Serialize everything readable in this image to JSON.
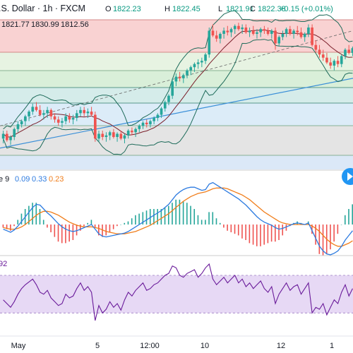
{
  "header": {
    "symbol_title": ".S. Dollar · 1h · FXCM",
    "ohlc": [
      {
        "key": "O",
        "value": "1822.23"
      },
      {
        "key": "H",
        "value": "1822.45"
      },
      {
        "key": "L",
        "value": "1821.91"
      },
      {
        "key": "C",
        "value": "1822.38"
      }
    ],
    "change": "+0.15 (+0.01%)",
    "indicator_values": [
      "1821.77",
      "1830.99",
      "1812.56"
    ]
  },
  "macd_legend": {
    "name": "e 9",
    "values": [
      "0.09",
      "0.33",
      "0.23"
    ]
  },
  "rsi_legend": {
    "value": "92"
  },
  "x_axis": {
    "labels": [
      "May",
      "5",
      "12:00",
      "10",
      "12",
      "1"
    ]
  },
  "colors": {
    "up_candle": "#26a69a",
    "down_candle": "#ef5350",
    "bollinger": "#1e6b5a",
    "ma_line": "#7b1f2a",
    "trend_line": "#3a8fd8",
    "macd_line": "#2d7be0",
    "signal_line": "#f07d1a",
    "rsi_line": "#6a1b9a",
    "rsi_band": "#e7d9f5",
    "play_button": "#2196f3",
    "positive_text": "#089981",
    "axis_text": "#131722"
  },
  "chart_data": {
    "type": "candlestick",
    "price_candles": [
      [
        1792,
        1797,
        1789,
        1795
      ],
      [
        1795,
        1797,
        1790,
        1791
      ],
      [
        1791,
        1794,
        1788,
        1793
      ],
      [
        1793,
        1799,
        1791,
        1798
      ],
      [
        1798,
        1803,
        1796,
        1801
      ],
      [
        1801,
        1804,
        1799,
        1803
      ],
      [
        1803,
        1807,
        1800,
        1806
      ],
      [
        1806,
        1810,
        1803,
        1809
      ],
      [
        1809,
        1814,
        1807,
        1812
      ],
      [
        1812,
        1815,
        1809,
        1810
      ],
      [
        1810,
        1813,
        1806,
        1807
      ],
      [
        1807,
        1810,
        1804,
        1808
      ],
      [
        1808,
        1812,
        1805,
        1810
      ],
      [
        1810,
        1811,
        1804,
        1806
      ],
      [
        1806,
        1808,
        1802,
        1804
      ],
      [
        1804,
        1806,
        1800,
        1802
      ],
      [
        1802,
        1805,
        1799,
        1803
      ],
      [
        1803,
        1808,
        1801,
        1806
      ],
      [
        1806,
        1808,
        1802,
        1804
      ],
      [
        1804,
        1807,
        1801,
        1805
      ],
      [
        1805,
        1810,
        1803,
        1808
      ],
      [
        1808,
        1812,
        1806,
        1810
      ],
      [
        1810,
        1812,
        1806,
        1808
      ],
      [
        1808,
        1811,
        1805,
        1809
      ],
      [
        1809,
        1812,
        1806,
        1807
      ],
      [
        1807,
        1809,
        1790,
        1792
      ],
      [
        1792,
        1797,
        1790,
        1795
      ],
      [
        1795,
        1797,
        1791,
        1793
      ],
      [
        1793,
        1796,
        1790,
        1794
      ],
      [
        1794,
        1797,
        1791,
        1796
      ],
      [
        1796,
        1798,
        1792,
        1793
      ],
      [
        1793,
        1796,
        1790,
        1795
      ],
      [
        1795,
        1797,
        1791,
        1792
      ],
      [
        1792,
        1795,
        1789,
        1794
      ],
      [
        1794,
        1798,
        1792,
        1797
      ],
      [
        1797,
        1799,
        1794,
        1796
      ],
      [
        1796,
        1799,
        1793,
        1798
      ],
      [
        1798,
        1801,
        1796,
        1800
      ],
      [
        1800,
        1803,
        1798,
        1802
      ],
      [
        1802,
        1804,
        1799,
        1801
      ],
      [
        1801,
        1804,
        1799,
        1803
      ],
      [
        1803,
        1806,
        1801,
        1805
      ],
      [
        1805,
        1808,
        1803,
        1807
      ],
      [
        1807,
        1812,
        1805,
        1811
      ],
      [
        1811,
        1816,
        1809,
        1815
      ],
      [
        1815,
        1820,
        1813,
        1819
      ],
      [
        1819,
        1830,
        1817,
        1828
      ],
      [
        1828,
        1833,
        1825,
        1831
      ],
      [
        1831,
        1834,
        1828,
        1830
      ],
      [
        1830,
        1833,
        1827,
        1832
      ],
      [
        1832,
        1836,
        1830,
        1835
      ],
      [
        1835,
        1838,
        1832,
        1837
      ],
      [
        1837,
        1840,
        1834,
        1839
      ],
      [
        1839,
        1842,
        1836,
        1840
      ],
      [
        1840,
        1843,
        1837,
        1841
      ],
      [
        1841,
        1846,
        1839,
        1845
      ],
      [
        1845,
        1862,
        1843,
        1860
      ],
      [
        1860,
        1864,
        1856,
        1857
      ],
      [
        1857,
        1860,
        1853,
        1855
      ],
      [
        1855,
        1859,
        1852,
        1858
      ],
      [
        1858,
        1862,
        1855,
        1860
      ],
      [
        1860,
        1863,
        1857,
        1859
      ],
      [
        1859,
        1862,
        1856,
        1861
      ],
      [
        1861,
        1864,
        1858,
        1863
      ],
      [
        1863,
        1865,
        1860,
        1861
      ],
      [
        1861,
        1864,
        1858,
        1862
      ],
      [
        1862,
        1864,
        1858,
        1859
      ],
      [
        1859,
        1862,
        1856,
        1860
      ],
      [
        1860,
        1863,
        1857,
        1858
      ],
      [
        1858,
        1861,
        1855,
        1859
      ],
      [
        1859,
        1862,
        1856,
        1861
      ],
      [
        1861,
        1863,
        1858,
        1860
      ],
      [
        1860,
        1862,
        1857,
        1858
      ],
      [
        1858,
        1861,
        1855,
        1860
      ],
      [
        1860,
        1862,
        1848,
        1852
      ],
      [
        1852,
        1857,
        1850,
        1856
      ],
      [
        1856,
        1860,
        1854,
        1858
      ],
      [
        1858,
        1862,
        1856,
        1861
      ],
      [
        1861,
        1863,
        1857,
        1858
      ],
      [
        1858,
        1861,
        1855,
        1860
      ],
      [
        1860,
        1863,
        1857,
        1859
      ],
      [
        1859,
        1862,
        1855,
        1856
      ],
      [
        1856,
        1859,
        1853,
        1858
      ],
      [
        1858,
        1864,
        1856,
        1862
      ],
      [
        1862,
        1864,
        1850,
        1851
      ],
      [
        1851,
        1854,
        1846,
        1848
      ],
      [
        1848,
        1851,
        1843,
        1845
      ],
      [
        1845,
        1848,
        1841,
        1843
      ],
      [
        1843,
        1846,
        1839,
        1840
      ],
      [
        1840,
        1843,
        1836,
        1838
      ],
      [
        1838,
        1842,
        1835,
        1841
      ],
      [
        1841,
        1844,
        1837,
        1839
      ],
      [
        1839,
        1845,
        1837,
        1844
      ],
      [
        1844,
        1849,
        1842,
        1848
      ],
      [
        1848,
        1851,
        1845,
        1846
      ],
      [
        1846,
        1850,
        1844,
        1849
      ]
    ],
    "macd": [
      -0.6,
      -0.8,
      -1.0,
      -0.7,
      -0.2,
      0.4,
      1.0,
      1.6,
      2.2,
      2.6,
      2.5,
      2.0,
      1.5,
      1.1,
      0.6,
      0.1,
      -0.3,
      -0.6,
      -0.8,
      -0.9,
      -0.8,
      -0.6,
      -0.4,
      -0.2,
      0.0,
      -0.6,
      -1.2,
      -1.5,
      -1.6,
      -1.5,
      -1.4,
      -1.3,
      -1.2,
      -1.1,
      -0.9,
      -0.6,
      -0.3,
      0.0,
      0.3,
      0.6,
      0.9,
      1.2,
      1.5,
      1.8,
      2.2,
      2.6,
      3.2,
      3.8,
      4.2,
      4.5,
      4.7,
      4.8,
      4.8,
      4.6,
      4.4,
      4.5,
      5.2,
      5.4,
      5.1,
      4.8,
      4.5,
      4.2,
      3.9,
      3.6,
      3.3,
      2.9,
      2.5,
      2.0,
      1.5,
      1.0,
      0.6,
      0.3,
      0.1,
      -0.1,
      -0.4,
      -0.6,
      -0.5,
      -0.3,
      -0.1,
      0.1,
      0.2,
      0.1,
      0.0,
      0.2,
      -0.8,
      -1.8,
      -2.8,
      -3.4,
      -3.8,
      -3.9,
      -3.7,
      -3.4,
      -2.8,
      -2.0,
      -1.4,
      -0.8
    ],
    "signal": [
      -0.4,
      -0.5,
      -0.6,
      -0.6,
      -0.5,
      -0.3,
      0.0,
      0.4,
      0.8,
      1.2,
      1.5,
      1.7,
      1.7,
      1.6,
      1.4,
      1.2,
      0.9,
      0.6,
      0.3,
      0.1,
      -0.1,
      -0.2,
      -0.3,
      -0.3,
      -0.3,
      -0.4,
      -0.5,
      -0.7,
      -0.9,
      -1.0,
      -1.1,
      -1.2,
      -1.2,
      -1.2,
      -1.1,
      -1.0,
      -0.9,
      -0.7,
      -0.5,
      -0.3,
      -0.1,
      0.2,
      0.5,
      0.8,
      1.1,
      1.4,
      1.8,
      2.2,
      2.6,
      3.0,
      3.3,
      3.6,
      3.8,
      4.0,
      4.1,
      4.2,
      4.4,
      4.6,
      4.7,
      4.7,
      4.7,
      4.6,
      4.4,
      4.2,
      4.0,
      3.8,
      3.5,
      3.2,
      2.8,
      2.4,
      2.0,
      1.6,
      1.3,
      1.0,
      0.7,
      0.4,
      0.2,
      0.1,
      0.0,
      0.0,
      0.0,
      0.0,
      0.0,
      0.0,
      -0.2,
      -0.5,
      -0.9,
      -1.4,
      -1.9,
      -2.3,
      -2.6,
      -2.8,
      -2.8,
      -2.6,
      -2.4,
      -2.1
    ],
    "rsi": [
      44,
      40,
      36,
      42,
      50,
      56,
      60,
      63,
      66,
      60,
      52,
      50,
      54,
      46,
      42,
      38,
      40,
      50,
      46,
      48,
      56,
      62,
      54,
      58,
      52,
      22,
      38,
      30,
      34,
      42,
      36,
      40,
      33,
      44,
      52,
      48,
      54,
      58,
      62,
      54,
      56,
      60,
      62,
      66,
      70,
      72,
      80,
      78,
      70,
      68,
      72,
      74,
      76,
      68,
      72,
      78,
      82,
      66,
      60,
      64,
      68,
      62,
      66,
      70,
      62,
      66,
      58,
      62,
      56,
      60,
      64,
      56,
      52,
      58,
      40,
      50,
      56,
      62,
      54,
      58,
      60,
      50,
      56,
      62,
      30,
      36,
      34,
      40,
      28,
      36,
      44,
      40,
      52,
      60,
      48,
      56
    ],
    "xlabels": [
      "May",
      "5",
      "12:00",
      "10",
      "12",
      "1"
    ]
  }
}
